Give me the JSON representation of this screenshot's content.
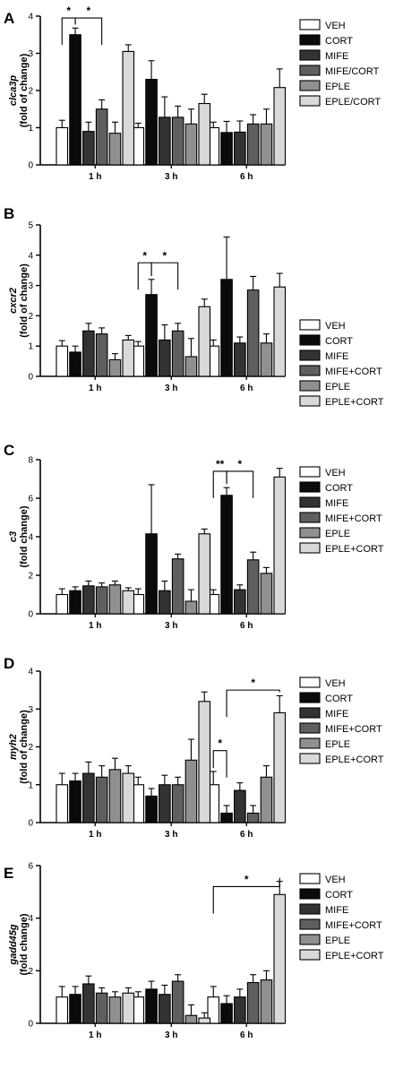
{
  "colors": {
    "VEH": "#ffffff",
    "CORT": "#0b0b0b",
    "MIFE": "#333333",
    "MIFE_CORT": "#5f5f5f",
    "EPLE": "#909090",
    "EPLE_CORT": "#d9d9d9",
    "stroke": "#000000"
  },
  "chart_data": [
    {
      "panel": "A",
      "type": "bar",
      "ylabel_gene": "clca3p",
      "ylabel_unit": "(fold of change)",
      "ylim": [
        0,
        4
      ],
      "yticks": [
        "0",
        "1",
        "2",
        "3",
        "4"
      ],
      "categories": [
        "1 h",
        "3 h",
        "6 h"
      ],
      "legend": [
        "VEH",
        "CORT",
        "MIFE",
        "MIFE/CORT",
        "EPLE",
        "EPLE/CORT"
      ],
      "series": [
        {
          "name": "VEH",
          "values": [
            1.0,
            1.0,
            1.0
          ],
          "errors": [
            0.2,
            0.12,
            0.15
          ]
        },
        {
          "name": "CORT",
          "values": [
            3.5,
            2.3,
            0.87
          ],
          "errors": [
            0.18,
            0.5,
            0.3
          ]
        },
        {
          "name": "MIFE",
          "values": [
            0.9,
            1.28,
            0.88
          ],
          "errors": [
            0.25,
            0.55,
            0.3
          ]
        },
        {
          "name": "MIFE/CORT",
          "values": [
            1.5,
            1.28,
            1.1
          ],
          "errors": [
            0.25,
            0.3,
            0.25
          ]
        },
        {
          "name": "EPLE",
          "values": [
            0.85,
            1.1,
            1.1
          ],
          "errors": [
            0.3,
            0.4,
            0.4
          ]
        },
        {
          "name": "EPLE/CORT",
          "values": [
            3.05,
            1.65,
            2.08
          ],
          "errors": [
            0.18,
            0.25,
            0.5
          ]
        }
      ],
      "significance": [
        {
          "label": "*",
          "category": 0,
          "from": 0,
          "to": 1,
          "y": 3.95
        },
        {
          "label": "*",
          "category": 0,
          "from": 1,
          "to": 3,
          "y": 3.95
        }
      ]
    },
    {
      "panel": "B",
      "type": "bar",
      "ylabel_gene": "cxcr2",
      "ylabel_unit": "(fold of change)",
      "ylim": [
        0,
        5
      ],
      "yticks": [
        "0",
        "1",
        "2",
        "3",
        "4",
        "5"
      ],
      "categories": [
        "1 h",
        "3 h",
        "6 h"
      ],
      "legend": [
        "VEH",
        "CORT",
        "MIFE",
        "MIFE+CORT",
        "EPLE",
        "EPLE+CORT"
      ],
      "series": [
        {
          "name": "VEH",
          "values": [
            1.0,
            1.0,
            1.0
          ],
          "errors": [
            0.18,
            0.15,
            0.2
          ]
        },
        {
          "name": "CORT",
          "values": [
            0.8,
            2.7,
            3.2
          ],
          "errors": [
            0.2,
            0.5,
            1.4
          ]
        },
        {
          "name": "MIFE",
          "values": [
            1.5,
            1.2,
            1.1
          ],
          "errors": [
            0.25,
            0.5,
            0.2
          ]
        },
        {
          "name": "MIFE+CORT",
          "values": [
            1.4,
            1.5,
            2.85
          ],
          "errors": [
            0.2,
            0.25,
            0.45
          ]
        },
        {
          "name": "EPLE",
          "values": [
            0.55,
            0.65,
            1.1
          ],
          "errors": [
            0.2,
            0.6,
            0.3
          ]
        },
        {
          "name": "EPLE+CORT",
          "values": [
            1.2,
            2.3,
            2.95
          ],
          "errors": [
            0.15,
            0.25,
            0.45
          ]
        }
      ],
      "significance": [
        {
          "label": "*",
          "category": 1,
          "from": 0,
          "to": 1,
          "y": 3.75
        },
        {
          "label": "*",
          "category": 1,
          "from": 1,
          "to": 3,
          "y": 3.75
        }
      ]
    },
    {
      "panel": "C",
      "type": "bar",
      "ylabel_gene": "c3",
      "ylabel_unit": "(fold change)",
      "ylim": [
        0,
        8
      ],
      "yticks": [
        "0",
        "2",
        "4",
        "6",
        "8"
      ],
      "categories": [
        "1 h",
        "3 h",
        "6 h"
      ],
      "legend": [
        "VEH",
        "CORT",
        "MIFE",
        "MIFE+CORT",
        "EPLE",
        "EPLE+CORT"
      ],
      "series": [
        {
          "name": "VEH",
          "values": [
            1.0,
            1.0,
            1.0
          ],
          "errors": [
            0.3,
            0.3,
            0.25
          ]
        },
        {
          "name": "CORT",
          "values": [
            1.2,
            4.15,
            6.15
          ],
          "errors": [
            0.2,
            2.55,
            0.4
          ]
        },
        {
          "name": "MIFE",
          "values": [
            1.45,
            1.2,
            1.25
          ],
          "errors": [
            0.25,
            0.5,
            0.25
          ]
        },
        {
          "name": "MIFE+CORT",
          "values": [
            1.4,
            2.85,
            2.8
          ],
          "errors": [
            0.2,
            0.25,
            0.4
          ]
        },
        {
          "name": "EPLE",
          "values": [
            1.5,
            0.65,
            2.1
          ],
          "errors": [
            0.2,
            0.6,
            0.3
          ]
        },
        {
          "name": "EPLE+CORT",
          "values": [
            1.2,
            4.15,
            7.1
          ],
          "errors": [
            0.15,
            0.25,
            0.45
          ]
        }
      ],
      "significance": [
        {
          "label": "**",
          "category": 2,
          "from": 0,
          "to": 1,
          "y": 7.4
        },
        {
          "label": "*",
          "category": 2,
          "from": 1,
          "to": 3,
          "y": 7.4
        }
      ]
    },
    {
      "panel": "D",
      "type": "bar",
      "ylabel_gene": "myh2",
      "ylabel_unit": "(fold of change)",
      "ylim": [
        0,
        4
      ],
      "yticks": [
        "0",
        "1",
        "2",
        "3",
        "4"
      ],
      "categories": [
        "1 h",
        "3 h",
        "6 h"
      ],
      "legend": [
        "VEH",
        "CORT",
        "MIFE",
        "MIFE+CORT",
        "EPLE",
        "EPLE+CORT"
      ],
      "series": [
        {
          "name": "VEH",
          "values": [
            1.0,
            1.0,
            1.0
          ],
          "errors": [
            0.3,
            0.2,
            0.35
          ]
        },
        {
          "name": "CORT",
          "values": [
            1.1,
            0.7,
            0.25
          ],
          "errors": [
            0.2,
            0.2,
            0.2
          ]
        },
        {
          "name": "MIFE",
          "values": [
            1.3,
            1.0,
            0.85
          ],
          "errors": [
            0.3,
            0.25,
            0.2
          ]
        },
        {
          "name": "MIFE+CORT",
          "values": [
            1.2,
            1.0,
            0.25
          ],
          "errors": [
            0.3,
            0.2,
            0.2
          ]
        },
        {
          "name": "EPLE",
          "values": [
            1.4,
            1.65,
            1.2
          ],
          "errors": [
            0.3,
            0.55,
            0.3
          ]
        },
        {
          "name": "EPLE+CORT",
          "values": [
            1.3,
            3.2,
            2.9
          ],
          "errors": [
            0.2,
            0.25,
            0.45
          ]
        }
      ],
      "significance": [
        {
          "label": "*",
          "category": 2,
          "from": 0,
          "to": 1,
          "y": 1.9
        },
        {
          "label": "*",
          "category": 2,
          "from": 1,
          "to": 5,
          "y": 3.5
        }
      ]
    },
    {
      "panel": "E",
      "type": "bar",
      "ylabel_gene": "gadd45g",
      "ylabel_unit": "(fold change)",
      "ylim": [
        0,
        6
      ],
      "yticks": [
        "0",
        "2",
        "4",
        "6"
      ],
      "categories": [
        "1 h",
        "3 h",
        "6 h"
      ],
      "legend": [
        "VEH",
        "CORT",
        "MIFE",
        "MIFE+CORT",
        "EPLE",
        "EPLE+CORT"
      ],
      "series": [
        {
          "name": "VEH",
          "values": [
            1.0,
            1.0,
            1.0
          ],
          "errors": [
            0.4,
            0.2,
            0.4
          ]
        },
        {
          "name": "CORT",
          "values": [
            1.1,
            1.3,
            0.75
          ],
          "errors": [
            0.3,
            0.3,
            0.3
          ]
        },
        {
          "name": "MIFE",
          "values": [
            1.5,
            1.1,
            1.0
          ],
          "errors": [
            0.3,
            0.35,
            0.3
          ]
        },
        {
          "name": "MIFE+CORT",
          "values": [
            1.15,
            1.6,
            1.55
          ],
          "errors": [
            0.2,
            0.25,
            0.3
          ]
        },
        {
          "name": "EPLE",
          "values": [
            1.0,
            0.3,
            1.65
          ],
          "errors": [
            0.2,
            0.4,
            0.35
          ]
        },
        {
          "name": "EPLE+CORT",
          "values": [
            1.15,
            0.2,
            4.9
          ],
          "errors": [
            0.2,
            0.2,
            0.5
          ]
        }
      ],
      "significance": [
        {
          "label": "*",
          "category": 2,
          "from": 0,
          "to": 5,
          "y": 5.2
        }
      ]
    }
  ]
}
